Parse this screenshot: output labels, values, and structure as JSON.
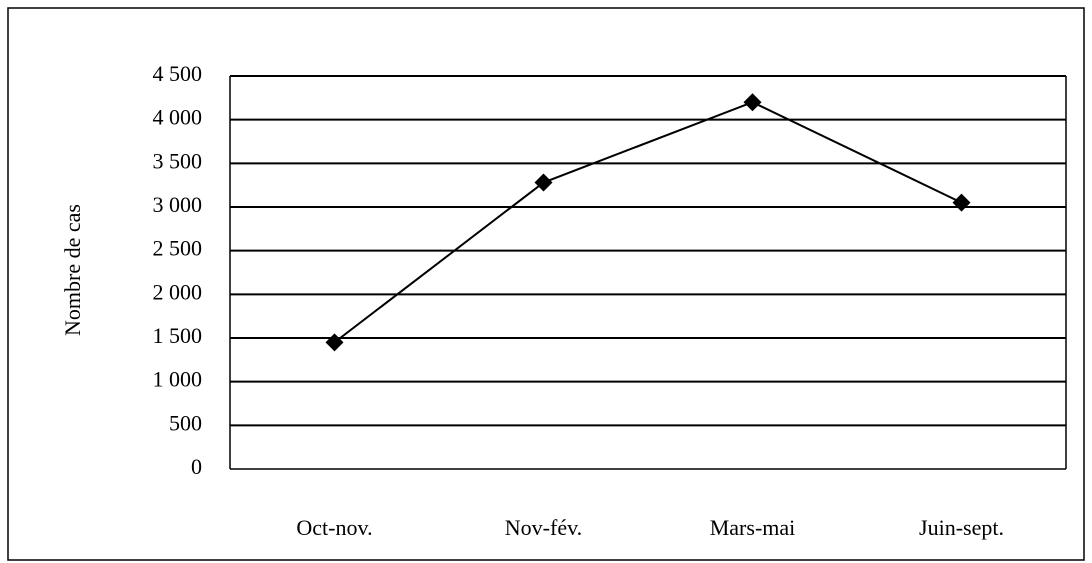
{
  "chart_data": {
    "type": "line",
    "y_label": "Nombre de cas",
    "categories": [
      "Oct-nov.",
      "Nov-fév.",
      "Mars-mai",
      "Juin-sept."
    ],
    "values": [
      1450,
      3280,
      4200,
      3050
    ],
    "color": "#000000",
    "ylim": [
      0,
      4500
    ],
    "yticks": [
      0,
      500,
      {
        "value": 1000,
        "label": "1 000"
      },
      {
        "value": 1500,
        "label": "1 500"
      },
      {
        "value": 2000,
        "label": "2 000"
      },
      {
        "value": 2500,
        "label": "2 500"
      },
      {
        "value": 3000,
        "label": "3 000"
      },
      {
        "value": 3500,
        "label": "3 500"
      },
      {
        "value": 4000,
        "label": "4 000"
      },
      {
        "value": 4500,
        "label": "4 500"
      }
    ],
    "grid": true
  }
}
